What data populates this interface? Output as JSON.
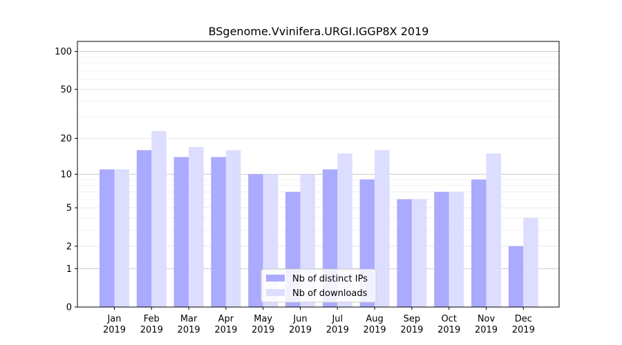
{
  "chart_data": {
    "type": "bar",
    "title": "BSgenome.Vvinifera.URGI.IGGP8X 2019",
    "xlabel": "",
    "ylabel": "",
    "yscale": "log1p",
    "ylim": [
      0,
      120
    ],
    "yticks": [
      0,
      1,
      2,
      5,
      10,
      20,
      50,
      100
    ],
    "grid": true,
    "legend_position": "bottom-center",
    "categories": [
      [
        "Jan",
        "2019"
      ],
      [
        "Feb",
        "2019"
      ],
      [
        "Mar",
        "2019"
      ],
      [
        "Apr",
        "2019"
      ],
      [
        "May",
        "2019"
      ],
      [
        "Jun",
        "2019"
      ],
      [
        "Jul",
        "2019"
      ],
      [
        "Aug",
        "2019"
      ],
      [
        "Sep",
        "2019"
      ],
      [
        "Oct",
        "2019"
      ],
      [
        "Nov",
        "2019"
      ],
      [
        "Dec",
        "2019"
      ]
    ],
    "series": [
      {
        "name": "Nb of distinct IPs",
        "color": "#aaaaff",
        "values": [
          11,
          16,
          14,
          14,
          10,
          7,
          11,
          9,
          6,
          7,
          9,
          2
        ]
      },
      {
        "name": "Nb of downloads",
        "color": "#ddddff",
        "values": [
          11,
          23,
          17,
          16,
          10,
          10,
          15,
          16,
          6,
          7,
          15,
          4
        ]
      }
    ]
  }
}
